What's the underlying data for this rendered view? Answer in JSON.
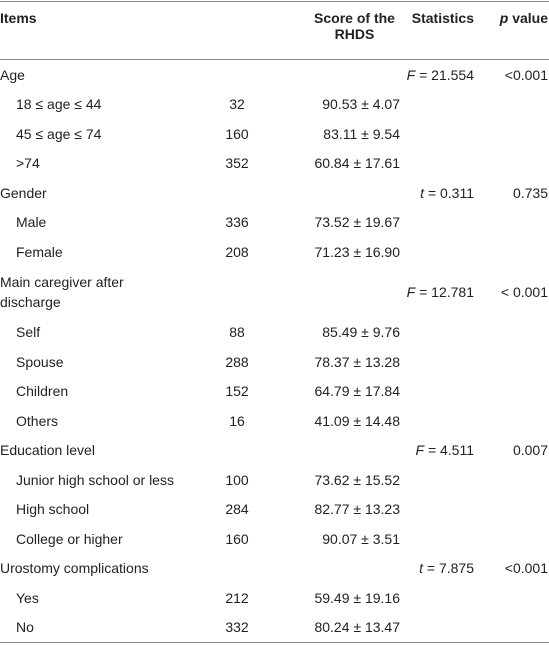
{
  "table": {
    "header": {
      "items": "Items",
      "score": "Score of the RHDS",
      "statistics": "Statistics",
      "p_symbol": "p",
      "p_rest": "value"
    },
    "groups": [
      {
        "label": "Age",
        "stat_symbol": "F",
        "stat_value": "= 21.554",
        "p": "<0.001",
        "rows": [
          {
            "label": "18 ≤ age ≤ 44",
            "n": 32,
            "score": "90.53 ± 4.07"
          },
          {
            "label": "45 ≤ age ≤ 74",
            "n": 160,
            "score": "83.11 ± 9.54"
          },
          {
            "label": ">74",
            "n": 352,
            "score": "60.84 ± 17.61"
          }
        ]
      },
      {
        "label": "Gender",
        "stat_symbol": "t",
        "stat_value": "= 0.311",
        "p": "0.735",
        "rows": [
          {
            "label": "Male",
            "n": 336,
            "score": "73.52 ± 19.67"
          },
          {
            "label": "Female",
            "n": 208,
            "score": "71.23 ± 16.90"
          }
        ]
      },
      {
        "label": "Main caregiver after discharge",
        "stat_symbol": "F",
        "stat_value": "= 12.781",
        "p": "< 0.001",
        "rows": [
          {
            "label": "Self",
            "n": 88,
            "score": "85.49 ± 9.76"
          },
          {
            "label": "Spouse",
            "n": 288,
            "score": "78.37 ± 13.28"
          },
          {
            "label": "Children",
            "n": 152,
            "score": "64.79 ± 17.84"
          },
          {
            "label": "Others",
            "n": 16,
            "score": "41.09 ± 14.48"
          }
        ]
      },
      {
        "label": "Education level",
        "stat_symbol": "F",
        "stat_value": "= 4.511",
        "p": "0.007",
        "rows": [
          {
            "label": "Junior high school or less",
            "n": 100,
            "score": "73.62 ± 15.52"
          },
          {
            "label": "High school",
            "n": 284,
            "score": "82.77 ± 13.23"
          },
          {
            "label": "College or higher",
            "n": 160,
            "score": "90.07 ± 3.51"
          }
        ]
      },
      {
        "label": "Urostomy complications",
        "stat_symbol": "t",
        "stat_value": "= 7.875",
        "p": "<0.001",
        "rows": [
          {
            "label": "Yes",
            "n": 212,
            "score": "59.49 ± 19.16"
          },
          {
            "label": "No",
            "n": 332,
            "score": "80.24 ± 13.47"
          }
        ]
      }
    ]
  }
}
